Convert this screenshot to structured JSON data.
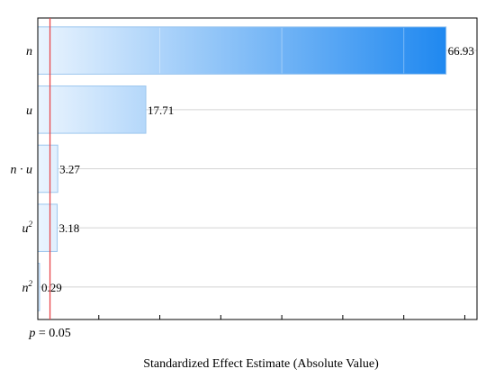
{
  "chart_data": {
    "type": "bar",
    "orientation": "horizontal",
    "xlabel": "Standardized Effect Estimate (Absolute Value)",
    "ylabel": "",
    "xlim": [
      0,
      72
    ],
    "grid": true,
    "bars": [
      {
        "name": "n",
        "sup": "",
        "value": 66.93,
        "label": "66.93"
      },
      {
        "name": "u",
        "sup": "",
        "value": 17.71,
        "label": "17.71"
      },
      {
        "name": "n · u",
        "sup": "",
        "value": 3.27,
        "label": "3.27"
      },
      {
        "name": "u",
        "sup": "2",
        "value": 3.18,
        "label": "3.18"
      },
      {
        "name": "n",
        "sup": "2",
        "value": 0.29,
        "label": "0.29"
      }
    ],
    "reference_line": {
      "value": 2.0,
      "label_var": "p",
      "label_rest": " = 0.05",
      "color": "#e8474b"
    },
    "bar_gradient": {
      "start": "#eaf4fe",
      "end": "#1f88f0"
    },
    "bar_edge_color": "#9cc6ee",
    "bar_segments": [
      0,
      20,
      40,
      60
    ]
  }
}
